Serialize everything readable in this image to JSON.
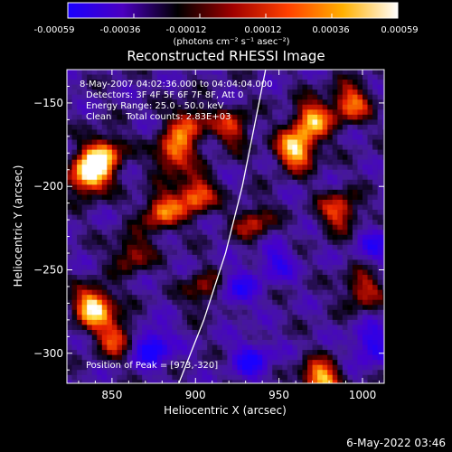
{
  "colorbar": {
    "tick_labels": [
      "-0.00059",
      "-0.00036",
      "-0.00012",
      "0.00012",
      "0.00036",
      "0.00059"
    ],
    "units": "(photons cm⁻² s⁻¹ asec⁻²)",
    "colors": [
      "#1a00ff",
      "#4b00c0",
      "#000000",
      "#a00000",
      "#ff4000",
      "#ffb000",
      "#ffffff"
    ]
  },
  "chart_data": {
    "type": "heatmap",
    "title": "Reconstructed RHESSI Image",
    "xlabel": "Heliocentric X (arcsec)",
    "ylabel": "Heliocentric Y (arcsec)",
    "xlim": [
      823,
      1013
    ],
    "ylim": [
      -318,
      -130
    ],
    "x_ticks": [
      850,
      900,
      950,
      1000
    ],
    "y_ticks": [
      -150,
      -200,
      -250,
      -300
    ],
    "value_range": [
      -0.00059,
      0.00059
    ],
    "annotations": [
      "8-May-2007 04:02:36.000 to 04:04:04.000",
      "Detectors: 3F 4F 5F 6F 7F 8F, Att 0",
      "Energy Range: 25.0 - 50.0 keV",
      "Clean     Total counts: 2.83E+03",
      "Position of Peak = [973,-320]"
    ],
    "limb_curve": [
      [
        890,
        -318
      ],
      [
        905,
        -280
      ],
      [
        918,
        -240
      ],
      [
        928,
        -200
      ],
      [
        936,
        -160
      ],
      [
        942,
        -130
      ]
    ],
    "hotspots": [
      {
        "x": 836,
        "y": -193,
        "level": 1.0
      },
      {
        "x": 845,
        "y": -181,
        "level": 0.75
      },
      {
        "x": 839,
        "y": -272,
        "level": 0.95
      },
      {
        "x": 852,
        "y": -290,
        "level": 0.6
      },
      {
        "x": 887,
        "y": -180,
        "level": 0.7
      },
      {
        "x": 880,
        "y": -215,
        "level": 0.65
      },
      {
        "x": 900,
        "y": -205,
        "level": 0.7
      },
      {
        "x": 896,
        "y": -162,
        "level": 0.55
      },
      {
        "x": 922,
        "y": -165,
        "level": 0.5
      },
      {
        "x": 935,
        "y": -222,
        "level": 0.45
      },
      {
        "x": 960,
        "y": -178,
        "level": 0.9
      },
      {
        "x": 970,
        "y": -160,
        "level": 0.75
      },
      {
        "x": 993,
        "y": -150,
        "level": 0.65
      },
      {
        "x": 986,
        "y": -215,
        "level": 0.6
      },
      {
        "x": 1000,
        "y": -262,
        "level": 0.5
      },
      {
        "x": 975,
        "y": -316,
        "level": 0.85
      },
      {
        "x": 905,
        "y": -262,
        "level": 0.4
      },
      {
        "x": 862,
        "y": -240,
        "level": 0.45
      }
    ],
    "coldspots": [
      {
        "x": 874,
        "y": -296,
        "level": 0.9
      },
      {
        "x": 934,
        "y": -304,
        "level": 0.7
      },
      {
        "x": 925,
        "y": -262,
        "level": 0.6
      },
      {
        "x": 1005,
        "y": -295,
        "level": 0.7
      },
      {
        "x": 948,
        "y": -245,
        "level": 0.55
      },
      {
        "x": 1008,
        "y": -235,
        "level": 0.5
      }
    ]
  },
  "footer": {
    "timestamp": "6-May-2022 03:46"
  }
}
